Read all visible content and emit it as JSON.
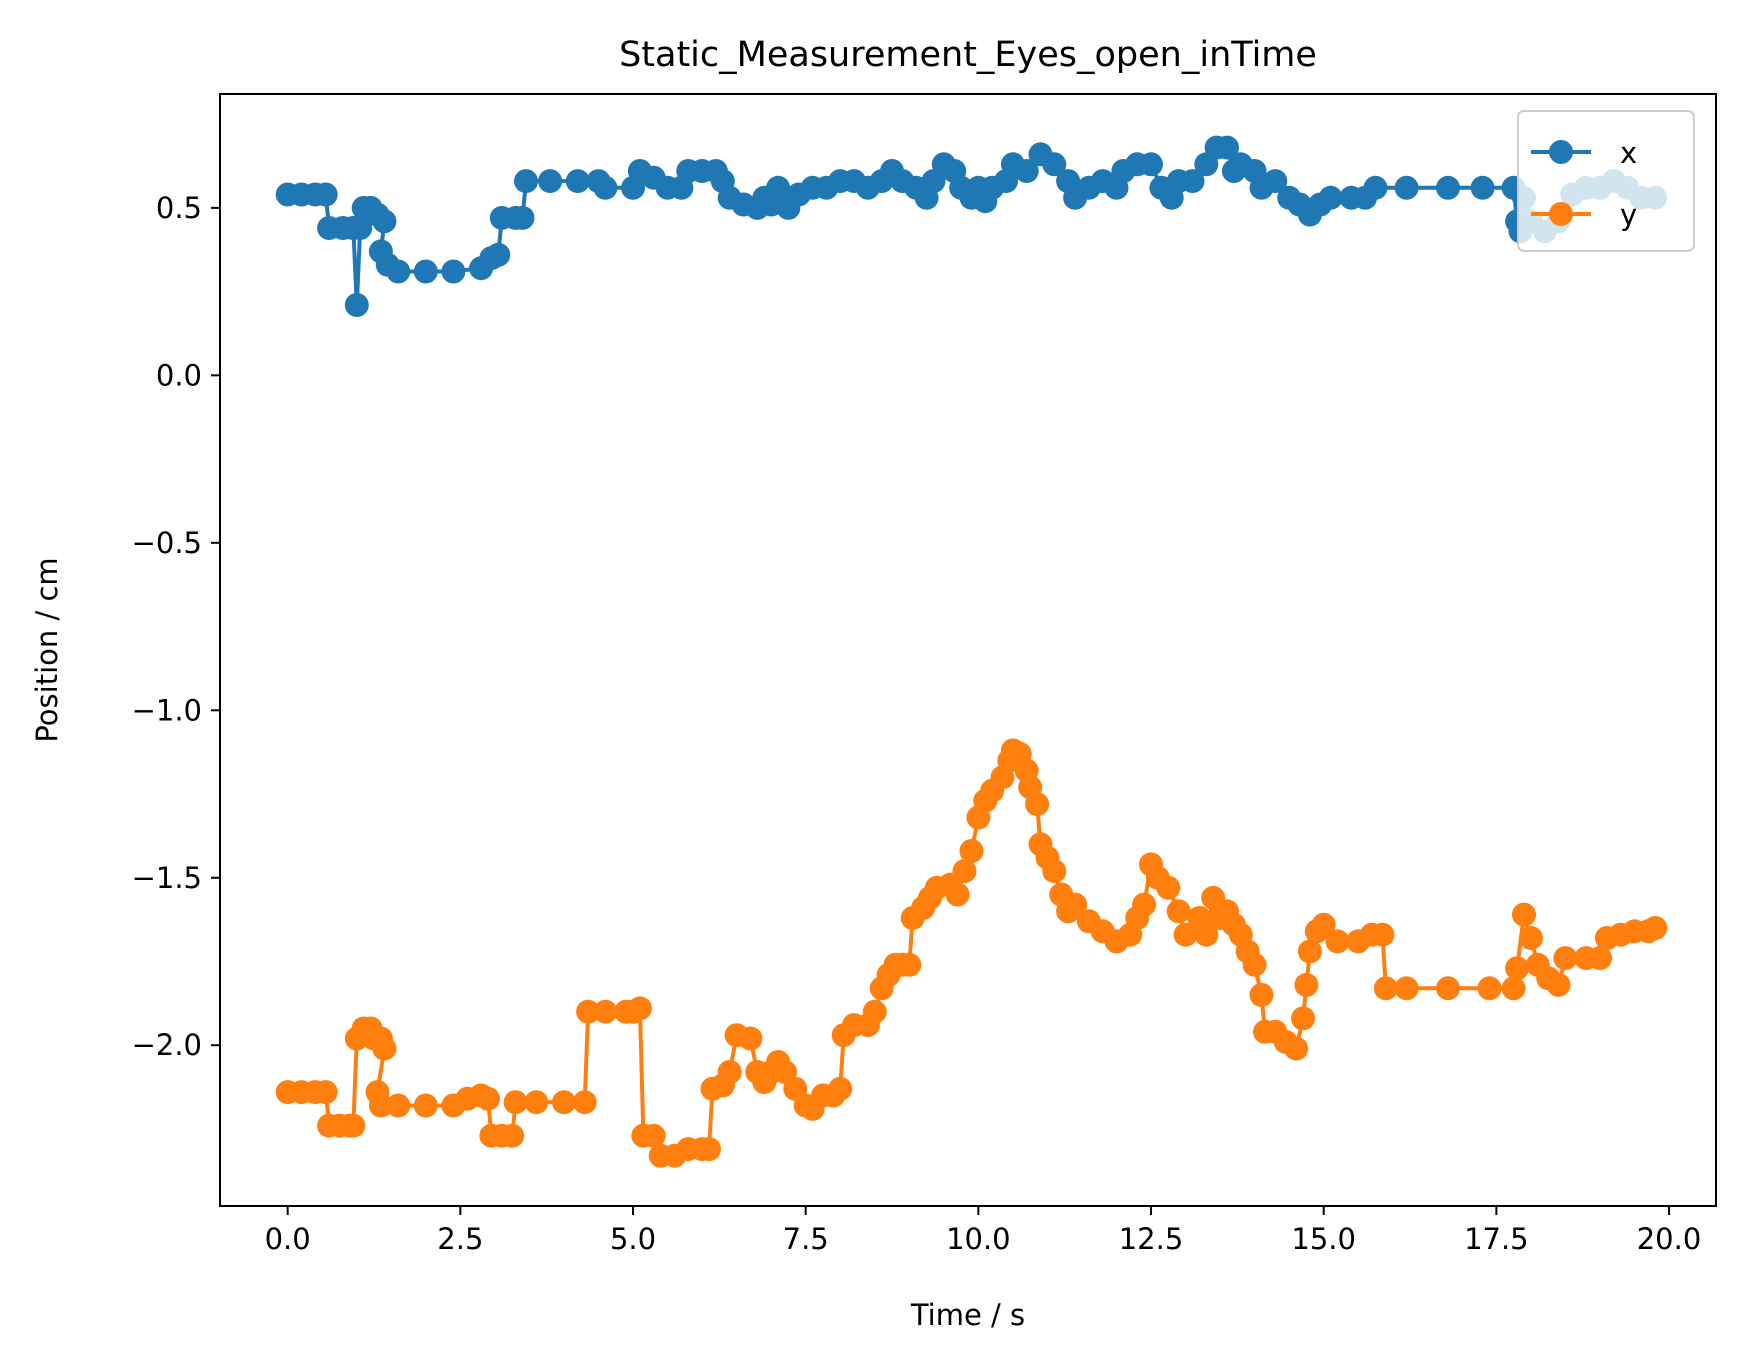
{
  "chart_data": {
    "type": "line",
    "title": "Static_Measurement_Eyes_open_inTime",
    "xlabel": "Time / s",
    "ylabel": "Position / cm",
    "xlim": [
      -0.98,
      20.68
    ],
    "ylim": [
      -2.48,
      0.84
    ],
    "xticks": [
      0.0,
      2.5,
      5.0,
      7.5,
      10.0,
      12.5,
      15.0,
      17.5,
      20.0
    ],
    "xtick_labels": [
      "0.0",
      "2.5",
      "5.0",
      "7.5",
      "10.0",
      "12.5",
      "15.0",
      "17.5",
      "20.0"
    ],
    "yticks": [
      0.5,
      0.0,
      -0.5,
      -1.0,
      -1.5,
      -2.0
    ],
    "ytick_labels": [
      "0.5",
      "0.0",
      "−0.5",
      "−1.0",
      "−1.5",
      "−2.0"
    ],
    "grid": false,
    "legend_position": "top-right",
    "series": [
      {
        "name": "x",
        "color": "#1f77b4",
        "marker": "circle",
        "points": [
          [
            0.0,
            0.54
          ],
          [
            0.2,
            0.54
          ],
          [
            0.4,
            0.54
          ],
          [
            0.55,
            0.54
          ],
          [
            0.6,
            0.44
          ],
          [
            0.8,
            0.44
          ],
          [
            0.95,
            0.44
          ],
          [
            1.0,
            0.21
          ],
          [
            1.05,
            0.44
          ],
          [
            1.1,
            0.5
          ],
          [
            1.2,
            0.5
          ],
          [
            1.3,
            0.48
          ],
          [
            1.4,
            0.46
          ],
          [
            1.35,
            0.37
          ],
          [
            1.45,
            0.33
          ],
          [
            1.6,
            0.31
          ],
          [
            2.0,
            0.31
          ],
          [
            2.4,
            0.31
          ],
          [
            2.8,
            0.32
          ],
          [
            2.95,
            0.35
          ],
          [
            3.05,
            0.36
          ],
          [
            3.1,
            0.47
          ],
          [
            3.3,
            0.47
          ],
          [
            3.4,
            0.47
          ],
          [
            3.45,
            0.58
          ],
          [
            3.8,
            0.58
          ],
          [
            4.2,
            0.58
          ],
          [
            4.5,
            0.58
          ],
          [
            4.6,
            0.56
          ],
          [
            5.0,
            0.56
          ],
          [
            5.1,
            0.61
          ],
          [
            5.3,
            0.59
          ],
          [
            5.5,
            0.56
          ],
          [
            5.7,
            0.56
          ],
          [
            5.8,
            0.61
          ],
          [
            6.0,
            0.61
          ],
          [
            6.2,
            0.61
          ],
          [
            6.3,
            0.58
          ],
          [
            6.4,
            0.53
          ],
          [
            6.6,
            0.51
          ],
          [
            6.8,
            0.5
          ],
          [
            6.9,
            0.53
          ],
          [
            7.0,
            0.51
          ],
          [
            7.1,
            0.56
          ],
          [
            7.25,
            0.5
          ],
          [
            7.4,
            0.54
          ],
          [
            7.6,
            0.56
          ],
          [
            7.8,
            0.56
          ],
          [
            8.0,
            0.58
          ],
          [
            8.2,
            0.58
          ],
          [
            8.4,
            0.56
          ],
          [
            8.6,
            0.58
          ],
          [
            8.75,
            0.61
          ],
          [
            8.9,
            0.58
          ],
          [
            9.1,
            0.56
          ],
          [
            9.25,
            0.53
          ],
          [
            9.35,
            0.58
          ],
          [
            9.5,
            0.63
          ],
          [
            9.65,
            0.61
          ],
          [
            9.75,
            0.56
          ],
          [
            9.9,
            0.53
          ],
          [
            10.0,
            0.56
          ],
          [
            10.1,
            0.52
          ],
          [
            10.2,
            0.56
          ],
          [
            10.4,
            0.58
          ],
          [
            10.5,
            0.63
          ],
          [
            10.7,
            0.61
          ],
          [
            10.9,
            0.66
          ],
          [
            11.1,
            0.63
          ],
          [
            11.3,
            0.58
          ],
          [
            11.4,
            0.53
          ],
          [
            11.6,
            0.56
          ],
          [
            11.8,
            0.58
          ],
          [
            12.0,
            0.56
          ],
          [
            12.1,
            0.61
          ],
          [
            12.3,
            0.63
          ],
          [
            12.5,
            0.63
          ],
          [
            12.65,
            0.56
          ],
          [
            12.8,
            0.53
          ],
          [
            12.9,
            0.58
          ],
          [
            13.1,
            0.58
          ],
          [
            13.3,
            0.63
          ],
          [
            13.45,
            0.68
          ],
          [
            13.6,
            0.68
          ],
          [
            13.7,
            0.61
          ],
          [
            13.8,
            0.63
          ],
          [
            14.0,
            0.61
          ],
          [
            14.1,
            0.56
          ],
          [
            14.3,
            0.58
          ],
          [
            14.5,
            0.53
          ],
          [
            14.65,
            0.51
          ],
          [
            14.8,
            0.48
          ],
          [
            14.95,
            0.51
          ],
          [
            15.1,
            0.53
          ],
          [
            15.4,
            0.53
          ],
          [
            15.6,
            0.53
          ],
          [
            15.75,
            0.56
          ],
          [
            16.2,
            0.56
          ],
          [
            16.8,
            0.56
          ],
          [
            17.3,
            0.56
          ],
          [
            17.75,
            0.56
          ],
          [
            17.8,
            0.46
          ],
          [
            17.85,
            0.43
          ],
          [
            17.9,
            0.53
          ],
          [
            18.0,
            0.46
          ],
          [
            18.2,
            0.43
          ],
          [
            18.4,
            0.46
          ],
          [
            18.6,
            0.54
          ],
          [
            18.8,
            0.56
          ],
          [
            19.0,
            0.56
          ],
          [
            19.2,
            0.58
          ],
          [
            19.4,
            0.56
          ],
          [
            19.6,
            0.53
          ],
          [
            19.8,
            0.53
          ]
        ]
      },
      {
        "name": "y",
        "color": "#ff7f0e",
        "marker": "circle",
        "points": [
          [
            0.0,
            -2.14
          ],
          [
            0.2,
            -2.14
          ],
          [
            0.4,
            -2.14
          ],
          [
            0.55,
            -2.14
          ],
          [
            0.6,
            -2.24
          ],
          [
            0.75,
            -2.24
          ],
          [
            0.9,
            -2.24
          ],
          [
            0.95,
            -2.24
          ],
          [
            1.0,
            -1.98
          ],
          [
            1.1,
            -1.95
          ],
          [
            1.2,
            -1.95
          ],
          [
            1.25,
            -1.98
          ],
          [
            1.35,
            -1.98
          ],
          [
            1.4,
            -2.01
          ],
          [
            1.3,
            -2.14
          ],
          [
            1.35,
            -2.18
          ],
          [
            1.6,
            -2.18
          ],
          [
            2.0,
            -2.18
          ],
          [
            2.4,
            -2.18
          ],
          [
            2.6,
            -2.16
          ],
          [
            2.8,
            -2.15
          ],
          [
            2.9,
            -2.16
          ],
          [
            2.95,
            -2.27
          ],
          [
            3.1,
            -2.27
          ],
          [
            3.25,
            -2.27
          ],
          [
            3.3,
            -2.17
          ],
          [
            3.6,
            -2.17
          ],
          [
            4.0,
            -2.17
          ],
          [
            4.3,
            -2.17
          ],
          [
            4.35,
            -1.9
          ],
          [
            4.6,
            -1.9
          ],
          [
            4.9,
            -1.9
          ],
          [
            5.0,
            -1.9
          ],
          [
            5.1,
            -1.89
          ],
          [
            5.15,
            -2.27
          ],
          [
            5.3,
            -2.27
          ],
          [
            5.4,
            -2.33
          ],
          [
            5.6,
            -2.33
          ],
          [
            5.8,
            -2.31
          ],
          [
            6.0,
            -2.31
          ],
          [
            6.1,
            -2.31
          ],
          [
            6.15,
            -2.13
          ],
          [
            6.3,
            -2.12
          ],
          [
            6.4,
            -2.08
          ],
          [
            6.5,
            -1.97
          ],
          [
            6.7,
            -1.98
          ],
          [
            6.8,
            -2.08
          ],
          [
            6.9,
            -2.11
          ],
          [
            7.0,
            -2.08
          ],
          [
            7.1,
            -2.05
          ],
          [
            7.2,
            -2.08
          ],
          [
            7.35,
            -2.13
          ],
          [
            7.5,
            -2.18
          ],
          [
            7.6,
            -2.19
          ],
          [
            7.75,
            -2.15
          ],
          [
            7.9,
            -2.15
          ],
          [
            8.0,
            -2.13
          ],
          [
            8.05,
            -1.97
          ],
          [
            8.2,
            -1.94
          ],
          [
            8.4,
            -1.94
          ],
          [
            8.5,
            -1.9
          ],
          [
            8.6,
            -1.83
          ],
          [
            8.7,
            -1.79
          ],
          [
            8.8,
            -1.76
          ],
          [
            8.9,
            -1.76
          ],
          [
            9.0,
            -1.76
          ],
          [
            9.05,
            -1.62
          ],
          [
            9.2,
            -1.59
          ],
          [
            9.3,
            -1.56
          ],
          [
            9.4,
            -1.53
          ],
          [
            9.6,
            -1.52
          ],
          [
            9.7,
            -1.55
          ],
          [
            9.8,
            -1.48
          ],
          [
            9.9,
            -1.42
          ],
          [
            10.0,
            -1.32
          ],
          [
            10.1,
            -1.27
          ],
          [
            10.2,
            -1.24
          ],
          [
            10.35,
            -1.2
          ],
          [
            10.45,
            -1.15
          ],
          [
            10.5,
            -1.12
          ],
          [
            10.6,
            -1.13
          ],
          [
            10.7,
            -1.18
          ],
          [
            10.75,
            -1.23
          ],
          [
            10.85,
            -1.28
          ],
          [
            10.9,
            -1.4
          ],
          [
            11.0,
            -1.44
          ],
          [
            11.1,
            -1.48
          ],
          [
            11.2,
            -1.55
          ],
          [
            11.3,
            -1.6
          ],
          [
            11.4,
            -1.58
          ],
          [
            11.6,
            -1.63
          ],
          [
            11.8,
            -1.66
          ],
          [
            12.0,
            -1.69
          ],
          [
            12.2,
            -1.67
          ],
          [
            12.3,
            -1.62
          ],
          [
            12.4,
            -1.58
          ],
          [
            12.5,
            -1.46
          ],
          [
            12.6,
            -1.5
          ],
          [
            12.75,
            -1.53
          ],
          [
            12.9,
            -1.6
          ],
          [
            13.0,
            -1.67
          ],
          [
            13.2,
            -1.62
          ],
          [
            13.3,
            -1.67
          ],
          [
            13.4,
            -1.56
          ],
          [
            13.5,
            -1.62
          ],
          [
            13.6,
            -1.6
          ],
          [
            13.7,
            -1.64
          ],
          [
            13.8,
            -1.67
          ],
          [
            13.9,
            -1.72
          ],
          [
            14.0,
            -1.76
          ],
          [
            14.1,
            -1.85
          ],
          [
            14.15,
            -1.96
          ],
          [
            14.3,
            -1.96
          ],
          [
            14.45,
            -1.99
          ],
          [
            14.6,
            -2.01
          ],
          [
            14.7,
            -1.92
          ],
          [
            14.75,
            -1.82
          ],
          [
            14.8,
            -1.72
          ],
          [
            14.9,
            -1.66
          ],
          [
            15.0,
            -1.64
          ],
          [
            15.2,
            -1.69
          ],
          [
            15.5,
            -1.69
          ],
          [
            15.7,
            -1.67
          ],
          [
            15.85,
            -1.67
          ],
          [
            15.9,
            -1.83
          ],
          [
            16.2,
            -1.83
          ],
          [
            16.8,
            -1.83
          ],
          [
            17.4,
            -1.83
          ],
          [
            17.75,
            -1.83
          ],
          [
            17.8,
            -1.77
          ],
          [
            17.9,
            -1.61
          ],
          [
            18.0,
            -1.68
          ],
          [
            18.1,
            -1.76
          ],
          [
            18.25,
            -1.8
          ],
          [
            18.4,
            -1.82
          ],
          [
            18.5,
            -1.74
          ],
          [
            18.8,
            -1.74
          ],
          [
            19.0,
            -1.74
          ],
          [
            19.1,
            -1.68
          ],
          [
            19.3,
            -1.67
          ],
          [
            19.5,
            -1.66
          ],
          [
            19.7,
            -1.66
          ],
          [
            19.8,
            -1.65
          ]
        ]
      }
    ]
  }
}
